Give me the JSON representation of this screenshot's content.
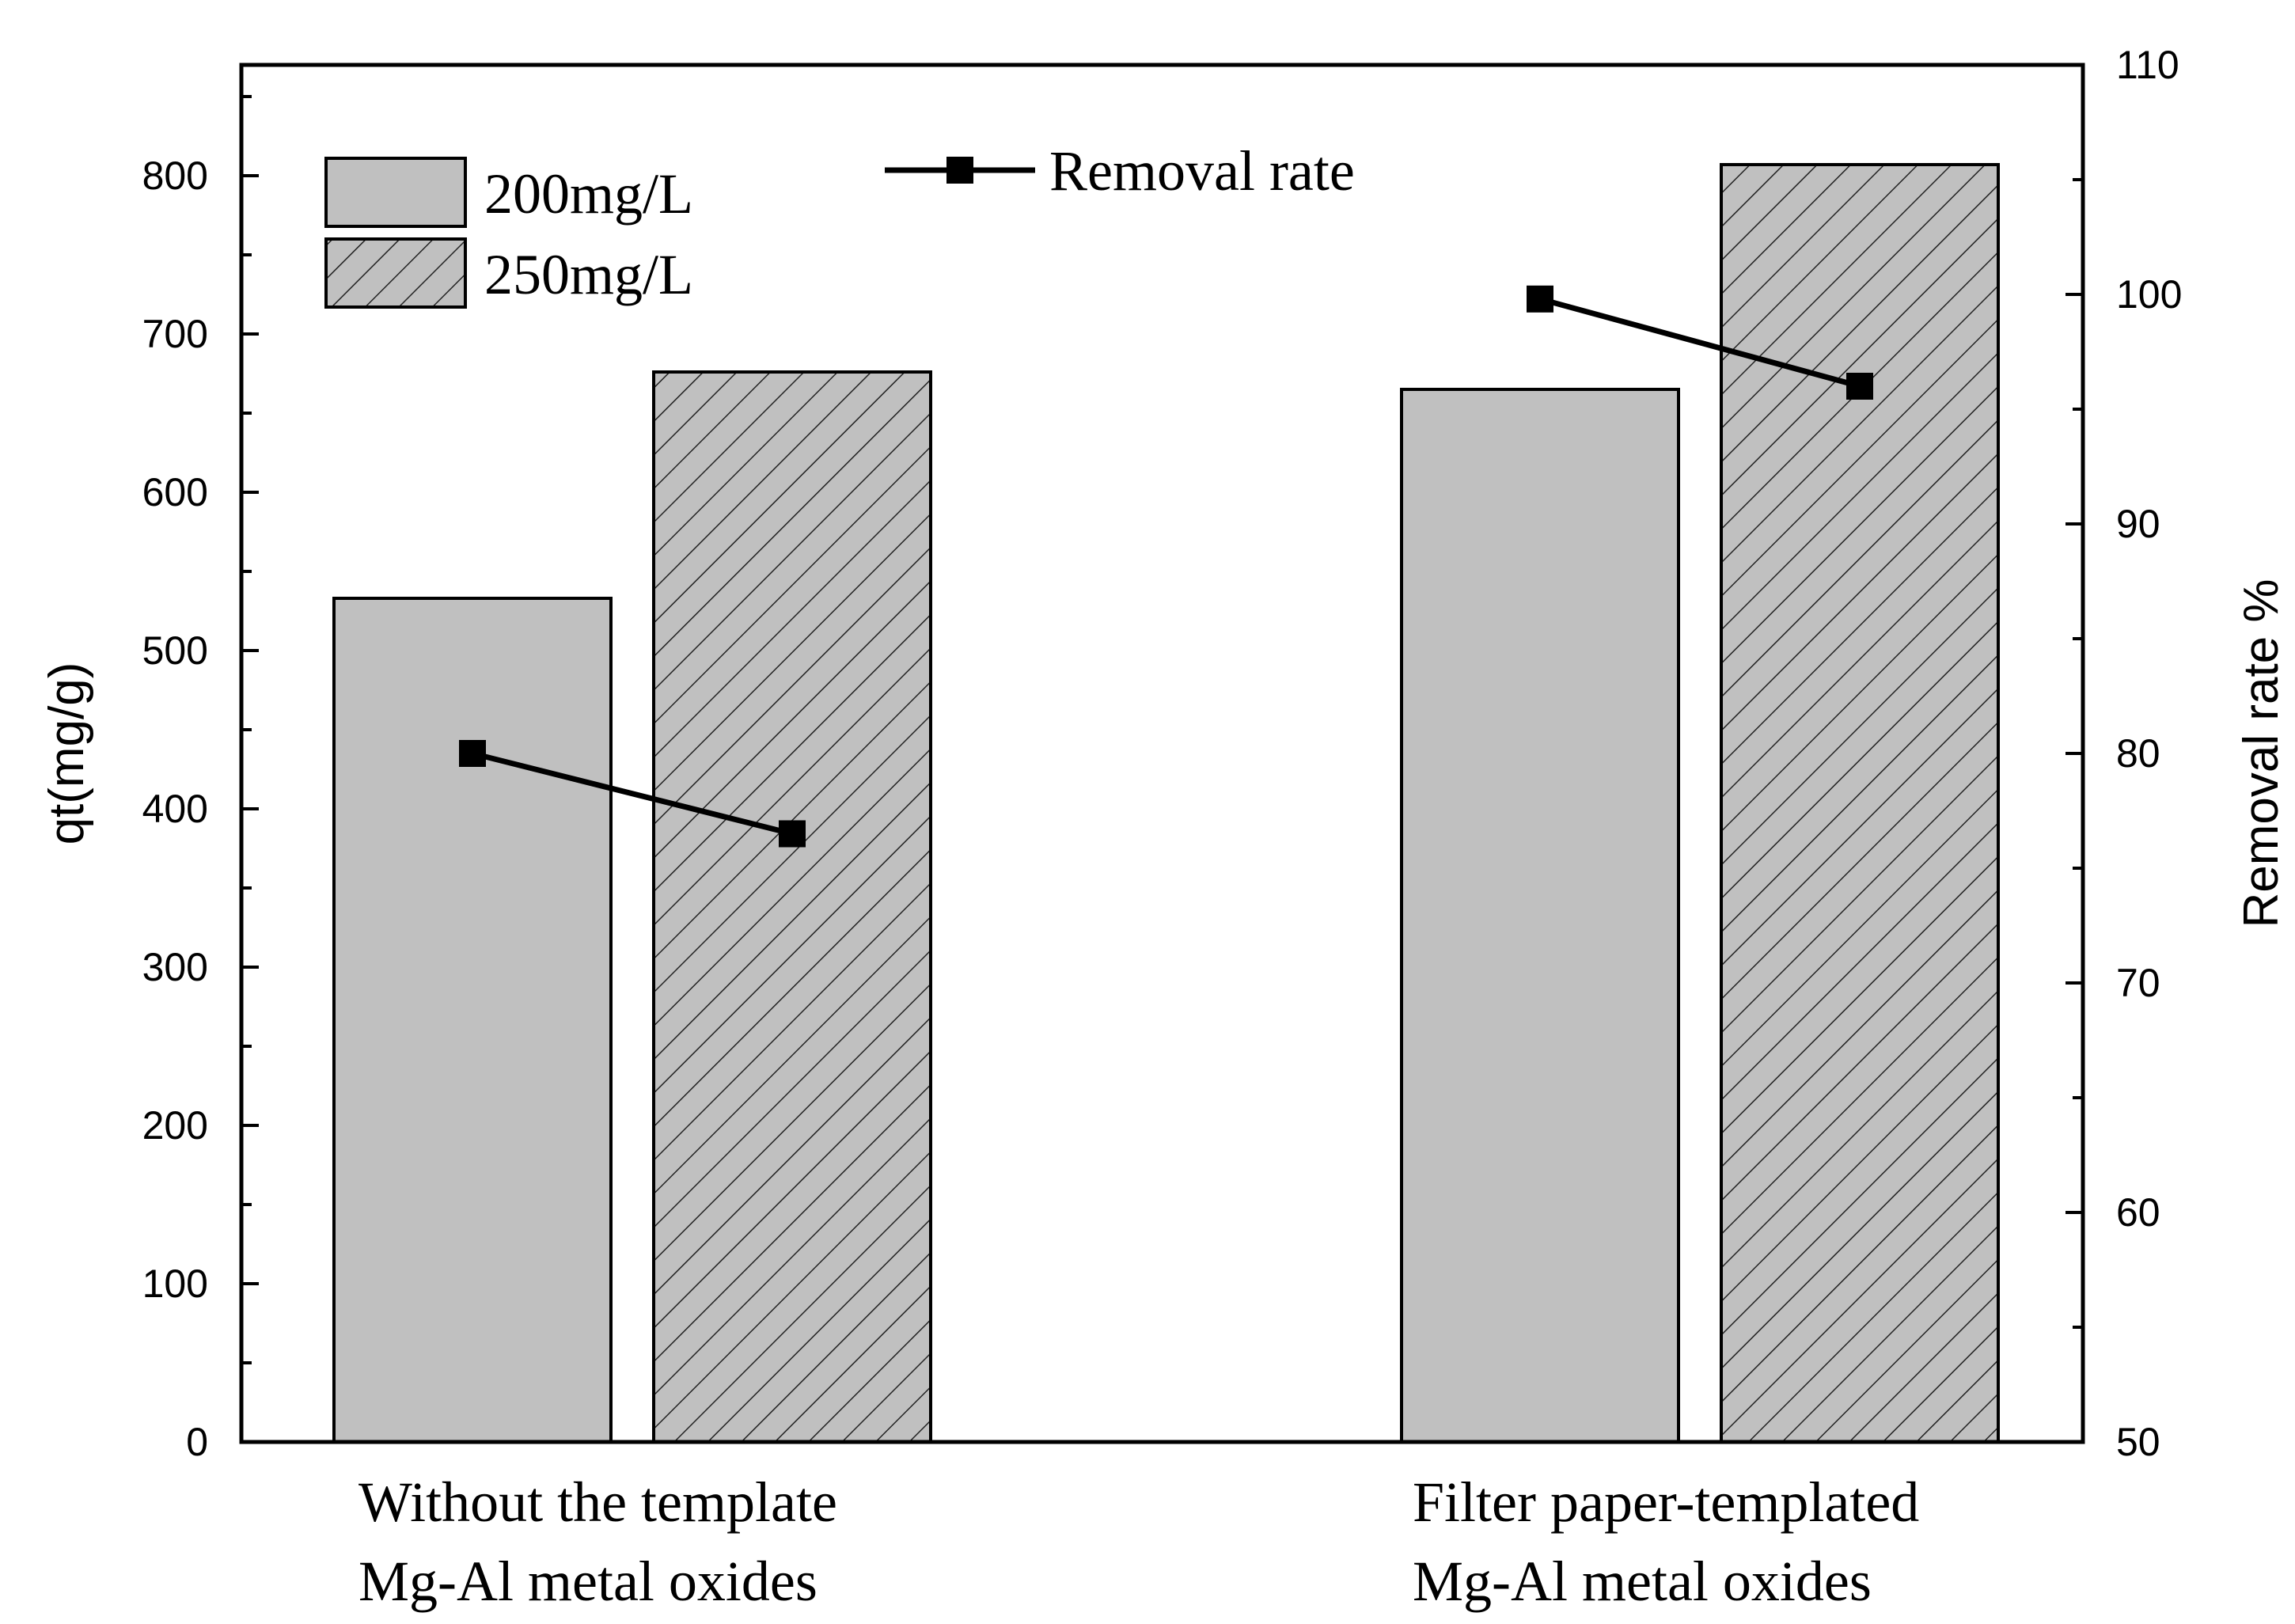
{
  "chart_data": {
    "type": "bar",
    "categories": [
      [
        "Without the template",
        "Mg-Al metal oxides"
      ],
      [
        "Filter paper-templated",
        "Mg-Al metal oxides"
      ]
    ],
    "bar_series": [
      {
        "name": "200mg/L",
        "values": [
          533,
          665
        ],
        "fill": "#c0c0c0",
        "pattern": "solid"
      },
      {
        "name": "250mg/L",
        "values": [
          676,
          807
        ],
        "fill": "#c0c0c0",
        "pattern": "hatch"
      }
    ],
    "line_series": {
      "name": "Removal rate",
      "axis": "right",
      "values": [
        [
          80.0,
          76.5
        ],
        [
          99.8,
          96.0
        ]
      ],
      "color": "#000000",
      "marker": "square"
    },
    "ylabel": "qt(mg/g)",
    "ylim": [
      0,
      870
    ],
    "yticks": [
      0,
      100,
      200,
      300,
      400,
      500,
      600,
      700,
      800
    ],
    "y2label": "Removal rate %",
    "y2lim": [
      50,
      110
    ],
    "y2ticks": [
      50,
      60,
      70,
      80,
      90,
      100,
      110
    ],
    "grid": false,
    "legend_placement": "top"
  }
}
